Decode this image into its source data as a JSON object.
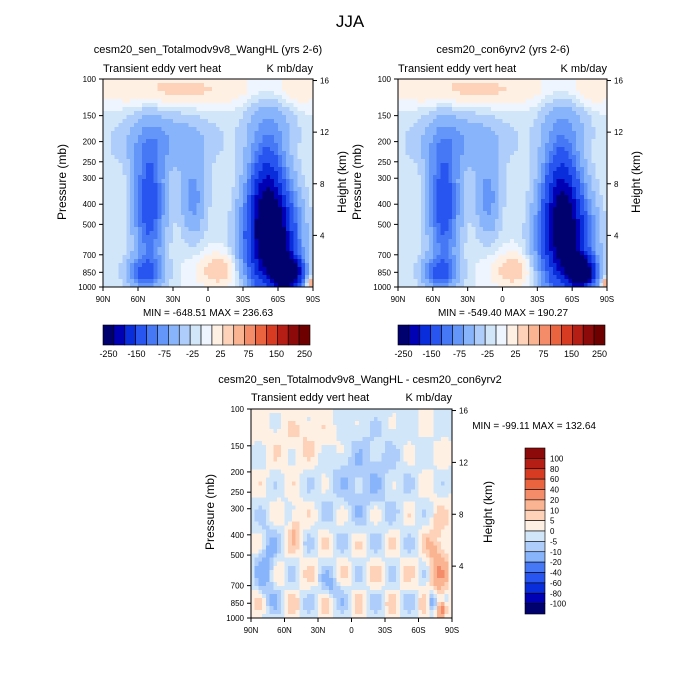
{
  "figure": {
    "title": "JJA"
  },
  "colors": {
    "top": [
      "#00006e",
      "#0000b4",
      "#0a2ddc",
      "#2855f0",
      "#4678f5",
      "#6496fa",
      "#87b4fa",
      "#afcdfa",
      "#d2e6fa",
      "#eef5ff",
      "#fff0e4",
      "#fdd2b9",
      "#fab491",
      "#f58c69",
      "#ea643f",
      "#d73c23",
      "#b41e14",
      "#8c0a0a",
      "#6e0000"
    ],
    "bottom": [
      "#00006e",
      "#0000b4",
      "#0a2ddc",
      "#2855f0",
      "#4678f5",
      "#6496fa",
      "#87b4fa",
      "#afcdfa",
      "#d2e6fa",
      "#eef5ff",
      "#fff0e4",
      "#fdd2b9",
      "#fab491",
      "#f58c69",
      "#ea643f",
      "#d73c23",
      "#b41e14",
      "#8c0a0a",
      "#6e0000"
    ]
  },
  "chart_data": [
    {
      "type": "heatmap",
      "title": "cesm20_sen_Totalmodv9v8_WangHL (yrs 2-6)",
      "left_string": "Transient eddy vert heat",
      "right_string": "K mb/day",
      "ylabel": "Pressure (mb)",
      "ylabel_right": "Height (km)",
      "x_ticks": [
        "90N",
        "60N",
        "30N",
        "0",
        "30S",
        "60S",
        "90S"
      ],
      "y_ticks": [
        "100",
        "150",
        "200",
        "250",
        "300",
        "400",
        "500",
        "700",
        "850",
        "1000"
      ],
      "y_right_ticks": [
        "16",
        "12",
        "8",
        "4"
      ],
      "ylim": [
        1000,
        100
      ],
      "xlim": [
        "90N",
        "90S"
      ],
      "stats": "MIN = -648.51   MAX = 236.63",
      "colorbar_labels": [
        "-250",
        "-150",
        "-75",
        "-25",
        "25",
        "75",
        "150",
        "250"
      ],
      "colorbar_orientation": "horizontal"
    },
    {
      "type": "heatmap",
      "title": "cesm20_con6yrv2 (yrs 2-6)",
      "left_string": "Transient eddy vert heat",
      "right_string": "K mb/day",
      "ylabel": "Pressure (mb)",
      "ylabel_right": "Height (km)",
      "x_ticks": [
        "90N",
        "60N",
        "30N",
        "0",
        "30S",
        "60S",
        "90S"
      ],
      "y_ticks": [
        "100",
        "150",
        "200",
        "250",
        "300",
        "400",
        "500",
        "700",
        "850",
        "1000"
      ],
      "y_right_ticks": [
        "16",
        "12",
        "8",
        "4"
      ],
      "ylim": [
        1000,
        100
      ],
      "xlim": [
        "90N",
        "90S"
      ],
      "stats": "MIN = -549.40   MAX = 190.27",
      "colorbar_labels": [
        "-250",
        "-150",
        "-75",
        "-25",
        "25",
        "75",
        "150",
        "250"
      ],
      "colorbar_orientation": "horizontal"
    },
    {
      "type": "heatmap",
      "title": "cesm20_sen_Totalmodv9v8_WangHL - cesm20_con6yrv2",
      "left_string": "Transient eddy vert heat",
      "right_string": "K mb/day",
      "ylabel": "Pressure (mb)",
      "ylabel_right": "Height (km)",
      "x_ticks": [
        "90N",
        "60N",
        "30N",
        "0",
        "30S",
        "60S",
        "90S"
      ],
      "y_ticks": [
        "100",
        "150",
        "200",
        "250",
        "300",
        "400",
        "500",
        "700",
        "850",
        "1000"
      ],
      "y_right_ticks": [
        "16",
        "12",
        "8",
        "4"
      ],
      "ylim": [
        1000,
        100
      ],
      "xlim": [
        "90N",
        "90S"
      ],
      "stats": "MIN = -99.11   MAX = 132.64",
      "colorbar_labels": [
        "100",
        "80",
        "60",
        "40",
        "20",
        "10",
        "5",
        "0",
        "-5",
        "-10",
        "-20",
        "-40",
        "-60",
        "-80",
        "-100"
      ],
      "colorbar_orientation": "vertical"
    }
  ]
}
